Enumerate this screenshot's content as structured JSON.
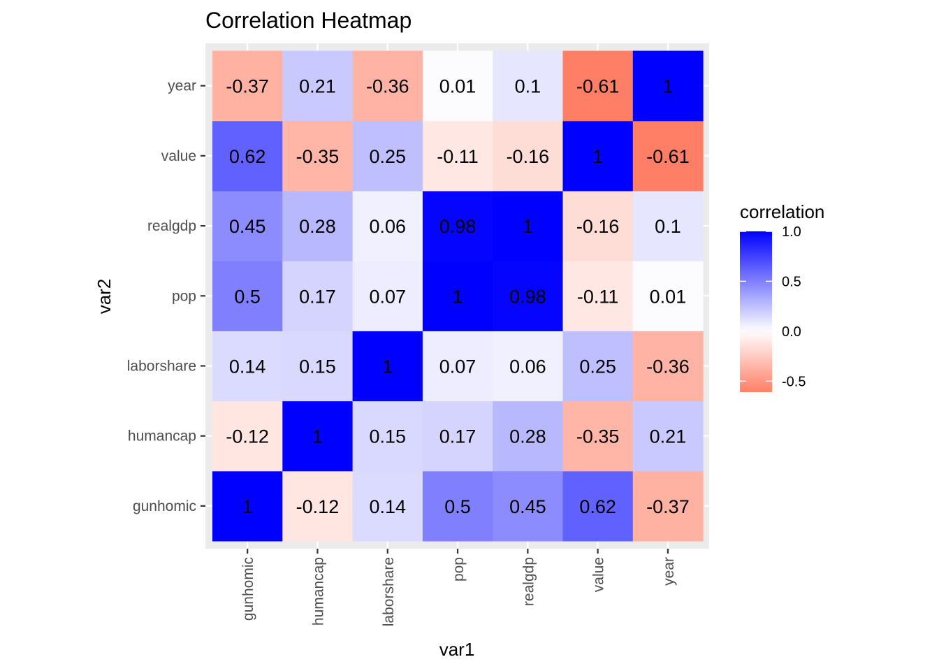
{
  "chart_data": {
    "type": "heatmap",
    "title": "Correlation Heatmap",
    "xlabel": "var1",
    "ylabel": "var2",
    "x_categories": [
      "gunhomic",
      "humancap",
      "laborshare",
      "pop",
      "realgdp",
      "value",
      "year"
    ],
    "y_categories": [
      "gunhomic",
      "humancap",
      "laborshare",
      "pop",
      "realgdp",
      "value",
      "year"
    ],
    "matrix": [
      [
        1,
        -0.12,
        0.14,
        0.5,
        0.45,
        0.62,
        -0.37
      ],
      [
        -0.12,
        1,
        0.15,
        0.17,
        0.28,
        -0.35,
        0.21
      ],
      [
        0.14,
        0.15,
        1,
        0.07,
        0.06,
        0.25,
        -0.36
      ],
      [
        0.5,
        0.17,
        0.07,
        1,
        0.98,
        -0.11,
        0.01
      ],
      [
        0.45,
        0.28,
        0.06,
        0.98,
        1,
        -0.16,
        0.1
      ],
      [
        0.62,
        -0.35,
        0.25,
        -0.11,
        -0.16,
        1,
        -0.61
      ],
      [
        -0.37,
        0.21,
        -0.36,
        0.01,
        0.1,
        -0.61,
        1
      ]
    ],
    "legend": {
      "title": "correlation",
      "placement": "right",
      "ticks": [
        1.0,
        0.5,
        0.0,
        -0.5
      ],
      "tick_labels": [
        "1.0",
        "0.5",
        "0.0",
        "-0.5"
      ],
      "range": [
        -0.61,
        1
      ]
    },
    "colors": {
      "low": "#ff7f66",
      "mid": "#ffffff",
      "high": "#0000ff",
      "panel_background": "#ebebeb",
      "grid": "#ffffff"
    },
    "grid": true
  }
}
